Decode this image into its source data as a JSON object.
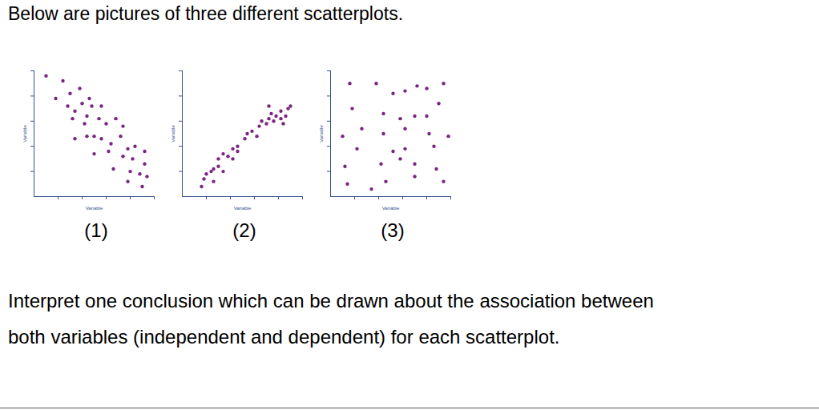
{
  "document": {
    "intro": "Below are pictures of three different scatterplots.",
    "question_lines": [
      "Interpret one conclusion which can be drawn about the association between",
      "both variables (independent and dependent) for each scatterplot."
    ]
  },
  "chart_data": [
    {
      "type": "scatter",
      "title": "(1)",
      "x_label": "Variable",
      "y_label": "Variable",
      "color": "#7a2582",
      "tick_labels": false,
      "xlim": [
        0,
        5
      ],
      "xticks": [
        1,
        2,
        3,
        4,
        5
      ],
      "ylim": [
        0,
        5
      ],
      "yticks": [
        1,
        2,
        3,
        4,
        5
      ],
      "x": [
        0.5,
        1.2,
        0.9,
        1.5,
        1.9,
        1.4,
        2.0,
        2.3,
        1.7,
        2.4,
        2.8,
        1.6,
        2.2,
        2.1,
        2.7,
        3.0,
        3.4,
        3.7,
        1.7,
        2.2,
        2.5,
        2.8,
        3.2,
        3.6,
        3.9,
        4.2,
        4.6,
        3.1,
        2.5,
        3.7,
        4.1,
        4.6,
        3.3,
        4.0,
        4.4,
        4.7,
        4.5,
        3.9
      ],
      "y": [
        4.8,
        4.6,
        3.9,
        4.1,
        4.3,
        3.6,
        3.7,
        3.9,
        3.4,
        3.6,
        3.6,
        3.1,
        3.2,
        2.9,
        3.1,
        2.9,
        3.1,
        2.8,
        2.3,
        2.4,
        2.4,
        2.3,
        2.1,
        2.4,
        1.9,
        2.0,
        1.8,
        1.8,
        1.7,
        1.6,
        1.5,
        1.3,
        1.1,
        1.0,
        0.9,
        0.8,
        0.4,
        0.6
      ]
    },
    {
      "type": "scatter",
      "title": "(2)",
      "x_label": "Variable",
      "y_label": "Variable",
      "color": "#7a2582",
      "tick_labels": false,
      "xlim": [
        0,
        5
      ],
      "xticks": [
        1,
        2,
        3,
        4,
        5
      ],
      "ylim": [
        0,
        5
      ],
      "yticks": [
        1,
        2,
        3,
        4,
        5
      ],
      "x": [
        0.8,
        0.9,
        1.0,
        1.2,
        1.3,
        1.3,
        1.5,
        1.7,
        1.5,
        1.7,
        1.9,
        2.1,
        2.3,
        2.1,
        2.3,
        2.6,
        2.7,
        2.9,
        3.1,
        3.2,
        3.3,
        3.5,
        3.6,
        3.7,
        3.8,
        3.9,
        4.1,
        4.2,
        4.3,
        4.4,
        4.5,
        3.6,
        4.1
      ],
      "y": [
        0.4,
        0.7,
        0.9,
        1.0,
        1.1,
        0.6,
        1.2,
        1.0,
        1.5,
        1.7,
        1.6,
        1.9,
        2.0,
        1.5,
        1.8,
        2.3,
        2.5,
        2.6,
        2.4,
        2.8,
        3.0,
        2.9,
        3.1,
        3.3,
        3.0,
        3.2,
        3.4,
        2.9,
        3.2,
        3.5,
        3.6,
        3.6,
        3.1
      ]
    },
    {
      "type": "scatter",
      "title": "(3)",
      "x_label": "Variable",
      "y_label": "Variable",
      "color": "#7a2582",
      "tick_labels": false,
      "xlim": [
        0,
        5
      ],
      "xticks": [
        1,
        2,
        3,
        4,
        5
      ],
      "ylim": [
        0,
        5
      ],
      "yticks": [
        1,
        2,
        3,
        4,
        5
      ],
      "x": [
        0.8,
        1.9,
        3.1,
        3.6,
        4.0,
        4.7,
        2.6,
        4.5,
        0.9,
        2.2,
        2.9,
        3.5,
        4.0,
        1.3,
        2.2,
        3.1,
        4.1,
        4.9,
        0.5,
        2.6,
        3.1,
        4.3,
        1.1,
        0.6,
        2.1,
        2.9,
        3.5,
        4.4,
        0.7,
        1.7,
        2.3,
        3.5,
        4.7
      ],
      "y": [
        4.5,
        4.5,
        4.2,
        4.4,
        4.3,
        4.5,
        4.1,
        3.7,
        3.5,
        3.3,
        3.1,
        3.2,
        3.2,
        2.7,
        2.5,
        2.7,
        2.5,
        2.4,
        2.4,
        1.8,
        1.9,
        2.0,
        1.9,
        1.2,
        1.3,
        1.5,
        1.3,
        1.1,
        0.5,
        0.3,
        0.6,
        0.8,
        0.6
      ]
    }
  ]
}
